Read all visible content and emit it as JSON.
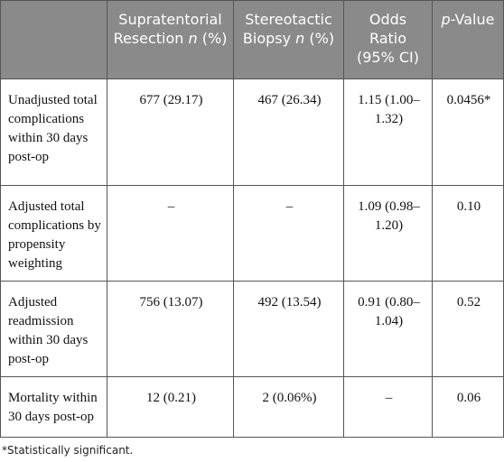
{
  "table": {
    "header": [
      {
        "parts": [
          {
            "text": ""
          }
        ]
      },
      {
        "parts": [
          {
            "text": "Supratentorial Resection "
          },
          {
            "text": "n",
            "italic": true
          },
          {
            "text": " (%)"
          }
        ]
      },
      {
        "parts": [
          {
            "text": "Stereotactic Biopsy "
          },
          {
            "text": "n",
            "italic": true
          },
          {
            "text": " (%)"
          }
        ]
      },
      {
        "parts": [
          {
            "text": "Odds Ratio (95% CI)"
          }
        ]
      },
      {
        "parts": [
          {
            "text": "p",
            "italic": true
          },
          {
            "text": "-Value"
          }
        ]
      }
    ],
    "rows": [
      [
        "Unadjusted total complications within 30 days post-op",
        "677 (29.17)",
        "467 (26.34)",
        "1.15 (1.00–1.32)",
        "0.0456*"
      ],
      [
        "Adjusted total complications by propensity weighting",
        "–",
        "–",
        "1.09 (0.98–1.20)",
        "0.10"
      ],
      [
        "Adjusted readmission within 30 days post-op",
        "756 (13.07)",
        "492 (13.54)",
        "0.91 (0.80–1.04)",
        "0.52"
      ],
      [
        "Mortality within 30 days post-op",
        "12 (0.21)",
        "2 (0.06%)",
        "–",
        "0.06"
      ]
    ]
  },
  "footnote": "*Statistically significant."
}
